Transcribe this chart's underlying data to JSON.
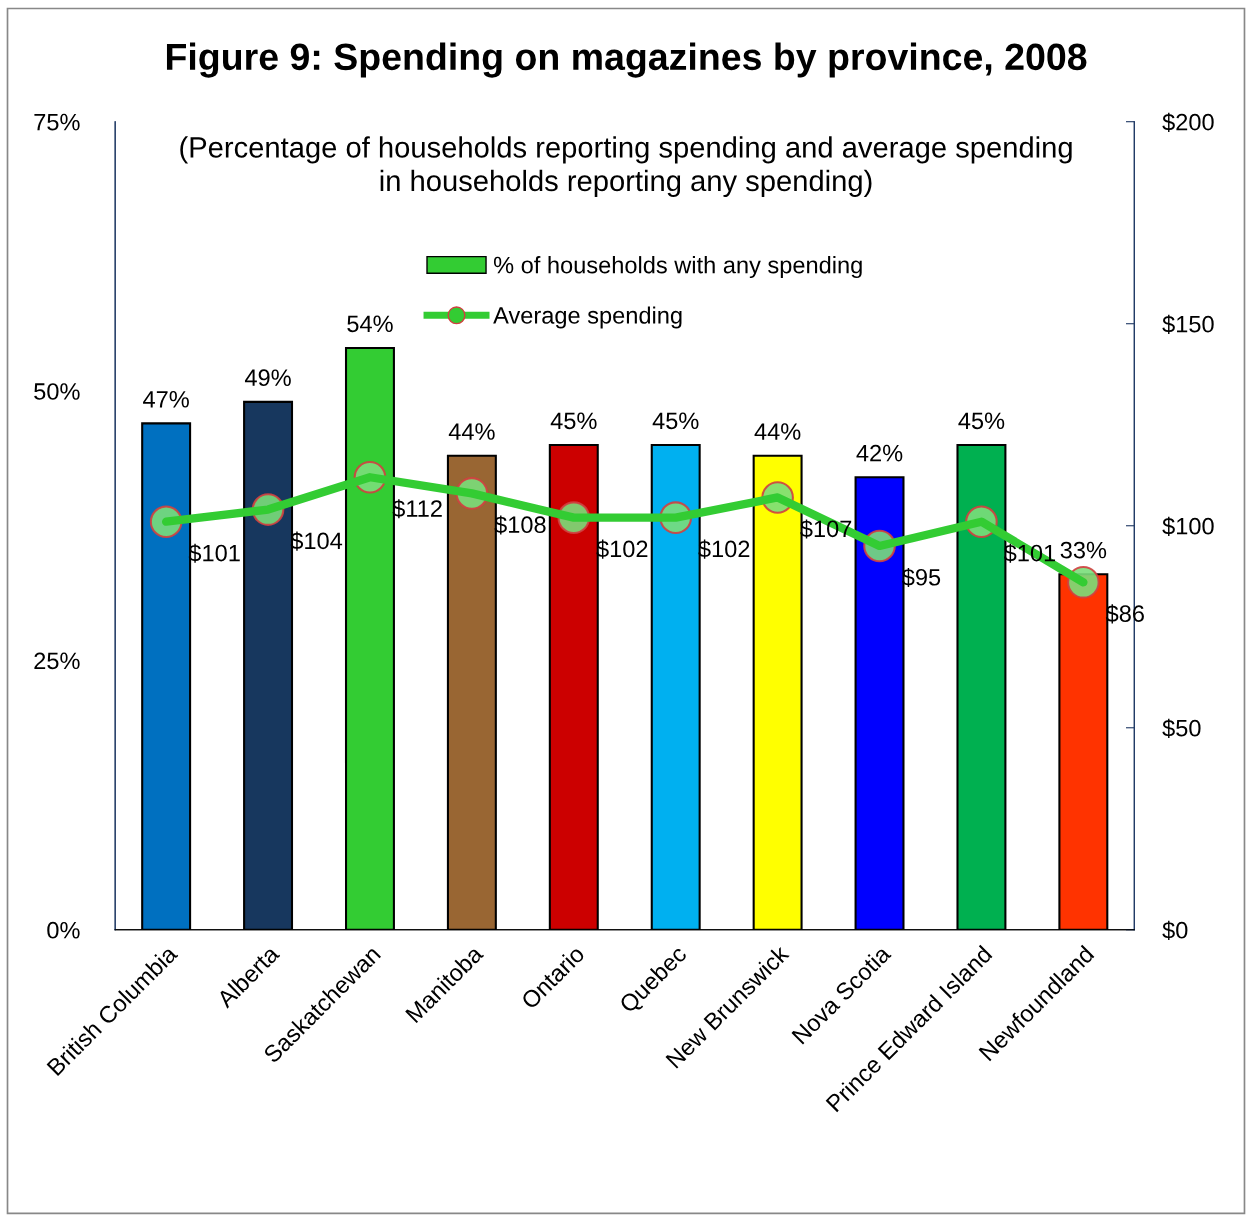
{
  "chart_data": {
    "type": "bar",
    "title": "Figure 9: Spending on magazines by province, 2008",
    "subtitle": "(Percentage of households reporting spending and average spending in households reporting any spending)",
    "categories": [
      "British Columbia",
      "Alberta",
      "Saskatchewan",
      "Manitoba",
      "Ontario",
      "Quebec",
      "New Brunswick",
      "Nova Scotia",
      "Prince Edward Island",
      "Newfoundland"
    ],
    "series": [
      {
        "name": "% of households with any spending",
        "color": "#33cc33",
        "colors": [
          "#0070c0",
          "#17375e",
          "#33cc33",
          "#996633",
          "#cc0000",
          "#00b0f0",
          "#ffff00",
          "#0000ff",
          "#00b050",
          "#ff3300"
        ],
        "values": [
          47,
          49,
          54,
          44,
          45,
          45,
          44,
          42,
          45,
          33
        ],
        "value_labels": [
          "47%",
          "49%",
          "54%",
          "44%",
          "45%",
          "45%",
          "44%",
          "42%",
          "45%",
          "33%"
        ]
      },
      {
        "name": "Average spending",
        "type": "line",
        "axis": "y2",
        "color": "#33cc33",
        "marker": "circle",
        "values": [
          101,
          104,
          112,
          108,
          102,
          102,
          107,
          95,
          101,
          86
        ],
        "value_labels": [
          "$101",
          "$104",
          "$112",
          "$108",
          "$102",
          "$102",
          "$107",
          "$95",
          "$101",
          "$86"
        ]
      }
    ],
    "ylim": [
      0,
      75
    ],
    "yticks": [
      {
        "value": 0,
        "label": "0%"
      },
      {
        "value": 25,
        "label": "25%"
      },
      {
        "value": 50,
        "label": "50%"
      },
      {
        "value": 75,
        "label": "75%"
      }
    ],
    "y2lim": [
      0,
      200
    ],
    "y2ticks": [
      {
        "value": 0,
        "label": "$0"
      },
      {
        "value": 50,
        "label": "$50"
      },
      {
        "value": 100,
        "label": "$100"
      },
      {
        "value": 150,
        "label": "$150"
      },
      {
        "value": 200,
        "label": "$200"
      }
    ],
    "legend": "top",
    "grid": false
  }
}
